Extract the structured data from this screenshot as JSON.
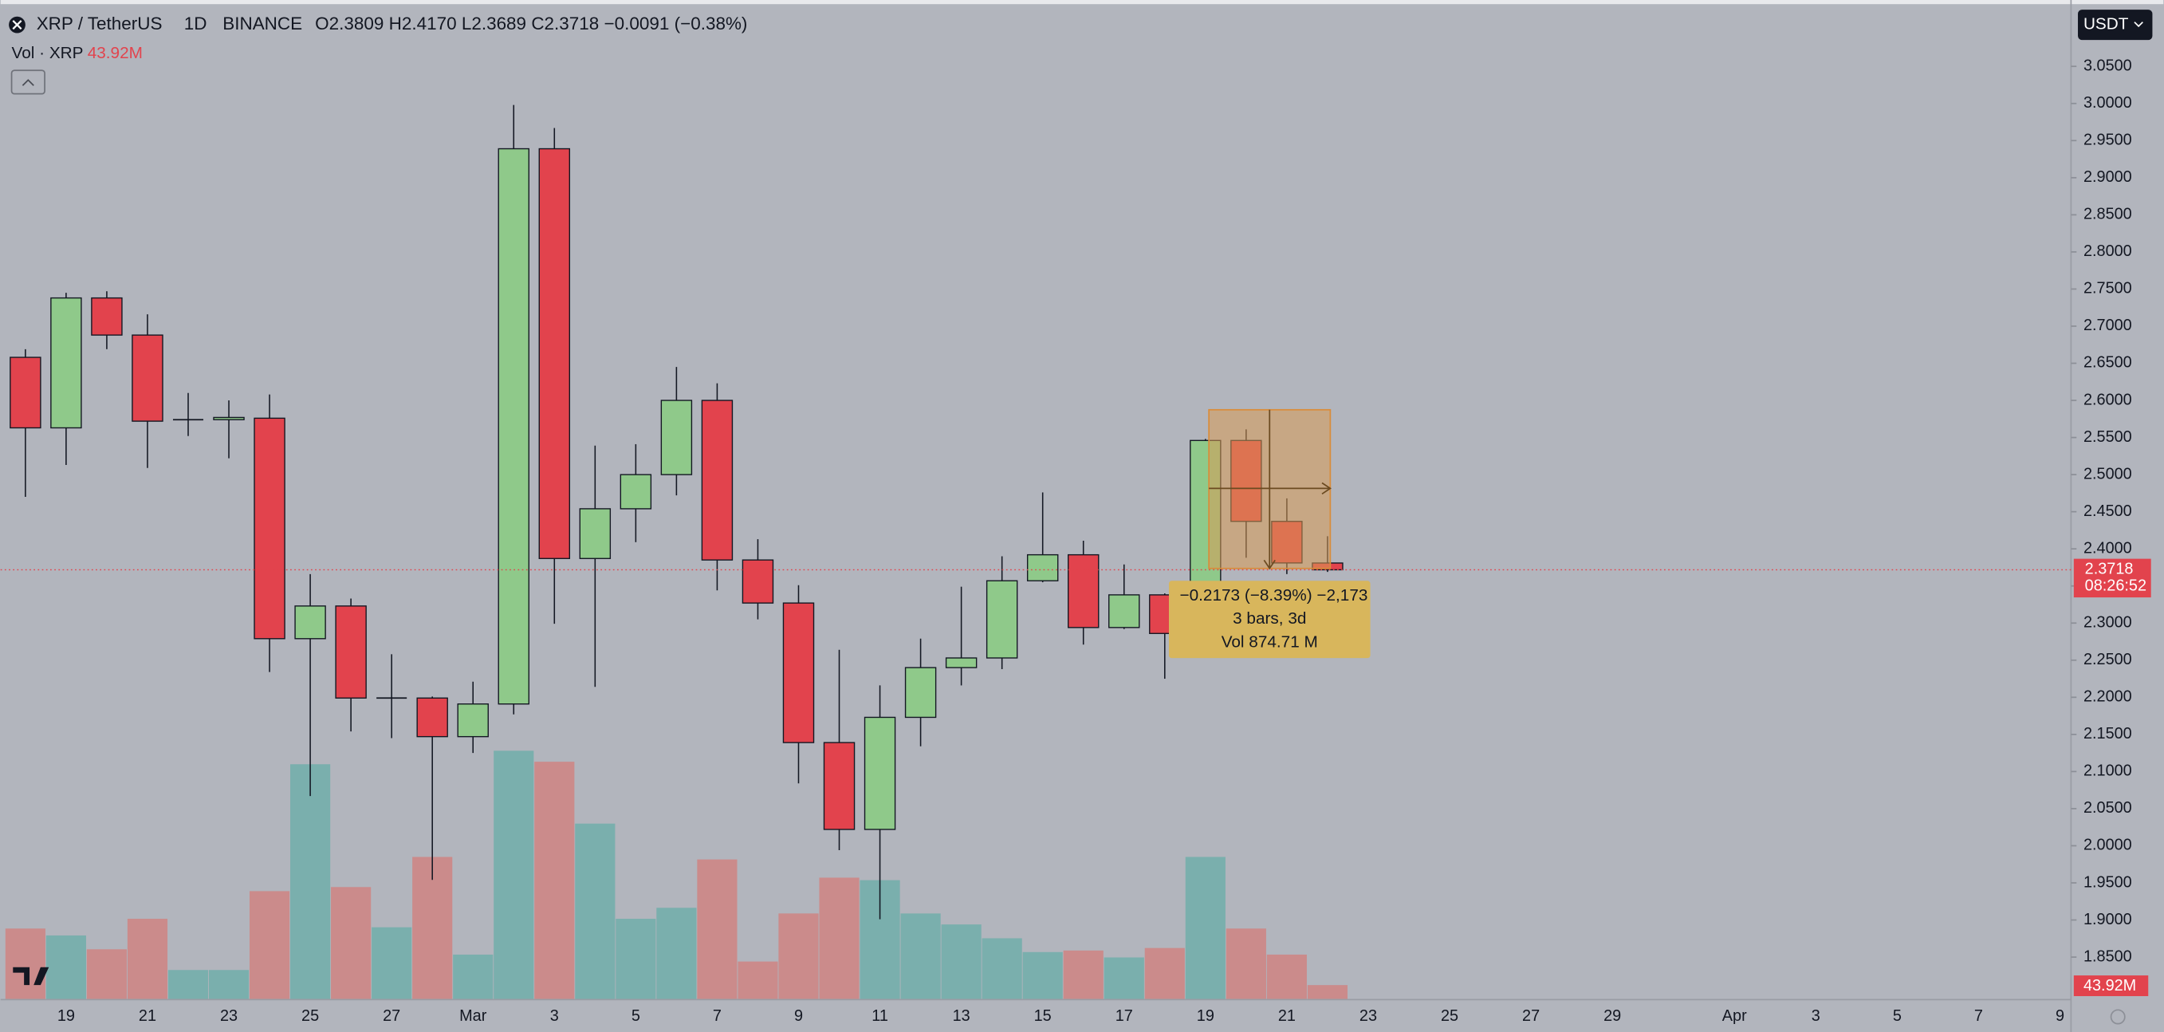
{
  "header": {
    "symbol": "XRP / TetherUS",
    "interval": "1D",
    "exchange": "BINANCE",
    "ohlc": [
      {
        "key": "O",
        "value": "2.3809"
      },
      {
        "key": "H",
        "value": "2.4170"
      },
      {
        "key": "L",
        "value": "2.3689"
      },
      {
        "key": "C",
        "value": "2.3718"
      }
    ],
    "change": "−0.0091 (−0.38%)",
    "vol_label": "Vol · XRP",
    "vol_value": "43.92M",
    "countdown": "08:26:52",
    "currency": "USDT"
  },
  "measure": {
    "line1": "−0.2173 (−8.39%) −2,173",
    "line2": "3 bars, 3d",
    "line3": "Vol 874.71 M"
  },
  "chart_data": {
    "type": "candlestick",
    "categories": [
      null,
      "19",
      null,
      "21",
      null,
      "23",
      null,
      "25",
      null,
      "27",
      null,
      "Mar",
      null,
      "3",
      null,
      "5",
      null,
      "7",
      null,
      "9",
      null,
      "11",
      null,
      "13",
      null,
      "15",
      null,
      "17",
      null,
      "19",
      null,
      "21",
      null,
      "23",
      null,
      "25",
      null,
      "27",
      null,
      "29",
      null,
      null,
      "Apr",
      null,
      "3",
      null,
      "5",
      null,
      "7",
      null,
      "9"
    ],
    "open": [
      2.658,
      2.563,
      2.738,
      2.688,
      2.574,
      2.574,
      2.576,
      2.279,
      2.323,
      2.199,
      2.199,
      2.147,
      2.191,
      2.939,
      2.387,
      2.454,
      2.5,
      2.6,
      2.385,
      2.327,
      2.139,
      2.022,
      2.173,
      2.24,
      2.253,
      2.357,
      2.392,
      2.294,
      2.338,
      2.286,
      2.546,
      2.437,
      2.3809,
      null,
      null,
      null,
      null,
      null,
      null,
      null,
      null,
      null,
      null,
      null,
      null,
      null,
      null,
      null,
      null,
      null,
      null
    ],
    "high": [
      2.669,
      2.745,
      2.747,
      2.716,
      2.61,
      2.6,
      2.608,
      2.366,
      2.333,
      2.258,
      2.201,
      2.221,
      2.998,
      2.967,
      2.539,
      2.541,
      2.645,
      2.623,
      2.413,
      2.351,
      2.264,
      2.216,
      2.279,
      2.349,
      2.39,
      2.476,
      2.411,
      2.379,
      2.34,
      2.548,
      2.561,
      2.468,
      2.417,
      null,
      null,
      null,
      null,
      null,
      null,
      null,
      null,
      null,
      null,
      null,
      null,
      null,
      null,
      null,
      null,
      null,
      null
    ],
    "low": [
      2.47,
      2.513,
      2.669,
      2.509,
      2.552,
      2.522,
      2.234,
      2.067,
      2.154,
      2.145,
      1.954,
      2.125,
      2.177,
      2.299,
      2.214,
      2.409,
      2.472,
      2.344,
      2.305,
      2.084,
      1.994,
      1.901,
      2.134,
      2.216,
      2.238,
      2.355,
      2.271,
      2.292,
      2.225,
      2.266,
      2.388,
      2.366,
      2.3689,
      null,
      null,
      null,
      null,
      null,
      null,
      null,
      null,
      null,
      null,
      null,
      null,
      null,
      null,
      null,
      null,
      null,
      null
    ],
    "close": [
      2.563,
      2.738,
      2.688,
      2.572,
      2.574,
      2.577,
      2.279,
      2.323,
      2.199,
      2.199,
      2.147,
      2.191,
      2.939,
      2.387,
      2.454,
      2.5,
      2.6,
      2.385,
      2.327,
      2.139,
      2.022,
      2.173,
      2.24,
      2.253,
      2.357,
      2.392,
      2.294,
      2.338,
      2.286,
      2.546,
      2.437,
      2.381,
      2.3718,
      null,
      null,
      null,
      null,
      null,
      null,
      null,
      null,
      null,
      null,
      null,
      null,
      null,
      null,
      null,
      null,
      null,
      null
    ],
    "volume": [
      224,
      202,
      158,
      255,
      92,
      92,
      343,
      747,
      356,
      228,
      452,
      141,
      790,
      755,
      558,
      255,
      290,
      444,
      119,
      272,
      386,
      378,
      272,
      237,
      193,
      149,
      154,
      132,
      162,
      452,
      224,
      141,
      43.92,
      null,
      null,
      null,
      null,
      null,
      null,
      null,
      null,
      null,
      null,
      null,
      null,
      null,
      null,
      null,
      null,
      null,
      null
    ],
    "up_color": "#8fc98a",
    "down_color": "#e2434d",
    "up_volume_color": "#7aafad",
    "down_volume_color": "#cb8b8b",
    "ylim": [
      1.7937,
      3.1394
    ],
    "volume_lim": [
      0,
      3180
    ],
    "yticks": [
      {
        "value": 1.85,
        "label": "1.8500"
      },
      {
        "value": 1.9,
        "label": "1.9000"
      },
      {
        "value": 1.95,
        "label": "1.9500"
      },
      {
        "value": 2,
        "label": "2.0000"
      },
      {
        "value": 2.05,
        "label": "2.0500"
      },
      {
        "value": 2.1,
        "label": "2.1000"
      },
      {
        "value": 2.15,
        "label": "2.1500"
      },
      {
        "value": 2.2,
        "label": "2.2000"
      },
      {
        "value": 2.25,
        "label": "2.2500"
      },
      {
        "value": 2.3,
        "label": "2.3000"
      },
      {
        "value": 2.35,
        "label": "2.3500"
      },
      {
        "value": 2.4,
        "label": "2.4000"
      },
      {
        "value": 2.45,
        "label": "2.4500"
      },
      {
        "value": 2.5,
        "label": "2.5000"
      },
      {
        "value": 2.55,
        "label": "2.5500"
      },
      {
        "value": 2.6,
        "label": "2.6000"
      },
      {
        "value": 2.65,
        "label": "2.6500"
      },
      {
        "value": 2.7,
        "label": "2.7000"
      },
      {
        "value": 2.75,
        "label": "2.7500"
      },
      {
        "value": 2.8,
        "label": "2.8000"
      },
      {
        "value": 2.85,
        "label": "2.8500"
      },
      {
        "value": 2.9,
        "label": "2.9000"
      },
      {
        "value": 2.95,
        "label": "2.9500"
      },
      {
        "value": 3,
        "label": "3.0000"
      },
      {
        "value": 3.05,
        "label": "3.0500"
      }
    ],
    "grid": false
  }
}
